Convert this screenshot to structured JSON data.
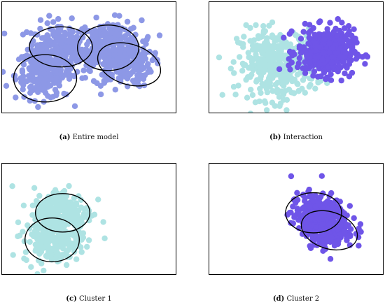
{
  "colors": {
    "cluster_1": "#aee3e3",
    "cluster_2": "#6f55e8",
    "entire_model": "#8d98e6",
    "ellipse": "#000000",
    "frame": "#000000"
  },
  "chart_data": [
    {
      "type": "scatter",
      "panel_label": "(a)",
      "caption": "Entire model",
      "xlim": [
        0,
        10
      ],
      "ylim": [
        0,
        6.4
      ],
      "grid": false,
      "point_color": "#8d98e6",
      "clusters": [
        {
          "center": [
            3.3,
            3.7
          ],
          "spread": [
            0.9,
            0.75
          ],
          "count": 220
        },
        {
          "center": [
            2.4,
            2.2
          ],
          "spread": [
            0.8,
            0.7
          ],
          "count": 200
        },
        {
          "center": [
            6.2,
            3.9
          ],
          "spread": [
            0.9,
            0.7
          ],
          "count": 240
        },
        {
          "center": [
            6.9,
            2.8
          ],
          "spread": [
            0.85,
            0.65
          ],
          "count": 200
        }
      ],
      "ellipses": [
        {
          "cx": 3.4,
          "cy": 3.8,
          "rx": 1.8,
          "ry": 1.15,
          "angle": 0
        },
        {
          "cx": 2.5,
          "cy": 2.0,
          "rx": 1.8,
          "ry": 1.35,
          "angle": 0
        },
        {
          "cx": 6.1,
          "cy": 3.75,
          "rx": 1.75,
          "ry": 1.3,
          "angle": 0
        },
        {
          "cx": 7.3,
          "cy": 2.8,
          "rx": 1.85,
          "ry": 1.15,
          "angle": 18
        }
      ]
    },
    {
      "type": "scatter",
      "panel_label": "(b)",
      "caption": "Interaction",
      "xlim": [
        0,
        10
      ],
      "ylim": [
        0,
        6.4
      ],
      "grid": false,
      "series": [
        {
          "name": "",
          "color": "#aee3e3",
          "center": [
            3.9,
            2.8
          ],
          "spread": [
            1.1,
            1.0
          ],
          "count": 360
        },
        {
          "name": "",
          "color": "#6f55e8",
          "center": [
            6.7,
            3.5
          ],
          "spread": [
            0.8,
            0.65
          ],
          "count": 420
        }
      ]
    },
    {
      "type": "scatter",
      "panel_label": "(c)",
      "caption": "Cluster 1",
      "xlim": [
        0,
        10
      ],
      "ylim": [
        0,
        6.4
      ],
      "grid": false,
      "point_color": "#aee3e3",
      "clusters": [
        {
          "center": [
            3.5,
            3.6
          ],
          "spread": [
            0.85,
            0.7
          ],
          "count": 230
        },
        {
          "center": [
            2.9,
            2.0
          ],
          "spread": [
            0.8,
            0.65
          ],
          "count": 210
        }
      ],
      "ellipses": [
        {
          "cx": 3.5,
          "cy": 3.55,
          "rx": 1.55,
          "ry": 1.1,
          "angle": 0
        },
        {
          "cx": 2.9,
          "cy": 2.0,
          "rx": 1.55,
          "ry": 1.25,
          "angle": 0
        }
      ]
    },
    {
      "type": "scatter",
      "panel_label": "(d)",
      "caption": "Cluster 2",
      "xlim": [
        0,
        10
      ],
      "ylim": [
        0,
        6.4
      ],
      "grid": false,
      "point_color": "#6f55e8",
      "clusters": [
        {
          "center": [
            6.2,
            3.5
          ],
          "spread": [
            0.75,
            0.6
          ],
          "count": 230
        },
        {
          "center": [
            6.9,
            2.6
          ],
          "spread": [
            0.7,
            0.55
          ],
          "count": 220
        }
      ],
      "ellipses": [
        {
          "cx": 6.0,
          "cy": 3.55,
          "rx": 1.6,
          "ry": 1.15,
          "angle": 0
        },
        {
          "cx": 6.9,
          "cy": 2.55,
          "rx": 1.65,
          "ry": 1.05,
          "angle": 18
        }
      ]
    }
  ]
}
